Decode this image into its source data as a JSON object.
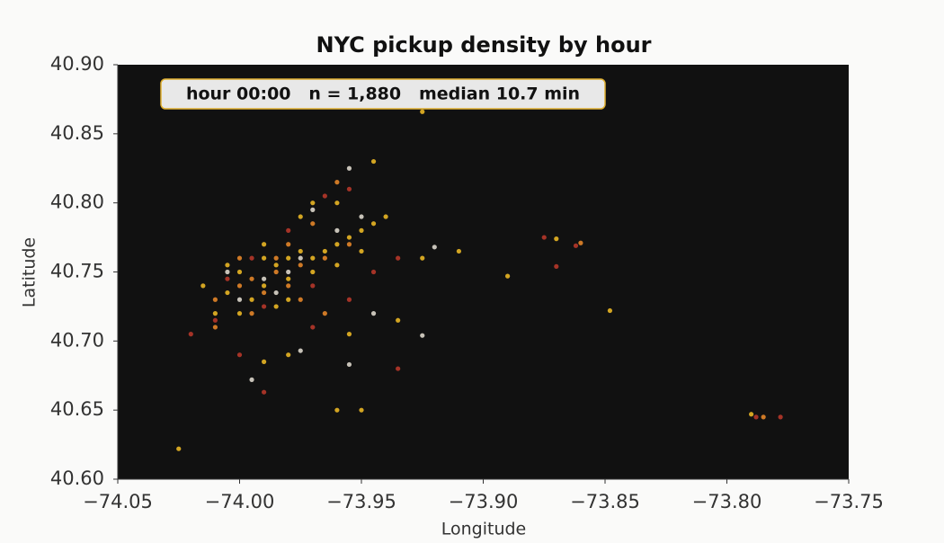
{
  "chart_data": {
    "type": "scatter",
    "title": "NYC pickup density by hour",
    "annotation": "hour 00:00   n = 1,880   median 10.7 min",
    "x_label": "Longitude",
    "y_label": "Latitude",
    "xlim": [
      -74.05,
      -73.75
    ],
    "xticks": [
      {
        "value": -74.05,
        "label": "−74.05"
      },
      {
        "value": -74.0,
        "label": "−74.00"
      },
      {
        "value": -73.95,
        "label": "−73.95"
      },
      {
        "value": -73.9,
        "label": "−73.90"
      },
      {
        "value": -73.85,
        "label": "−73.85"
      },
      {
        "value": -73.8,
        "label": "−73.80"
      },
      {
        "value": -73.75,
        "label": "−73.75"
      }
    ],
    "ylim": [
      40.6,
      40.9
    ],
    "yticks": [
      {
        "value": 40.6,
        "label": "40.60"
      },
      40.65,
      {
        "value": 40.7,
        "label": "40.70"
      },
      40.75,
      {
        "value": 40.8,
        "label": "40.80"
      },
      40.85,
      {
        "value": 40.9,
        "label": "40.90"
      }
    ],
    "background": "#111111",
    "series": [
      {
        "color": "#f6c026",
        "x": [
          -74.0,
          -73.99,
          -73.985,
          -73.98,
          -73.975,
          -73.97,
          -73.99,
          -74.005,
          -73.995,
          -73.98,
          -73.965,
          -73.96,
          -73.955,
          -73.95,
          -73.945,
          -74.01,
          -74.0,
          -73.985,
          -73.975,
          -73.97,
          -73.96,
          -73.95,
          -73.99,
          -74.005,
          -74.015,
          -73.98,
          -73.97,
          -73.96,
          -73.94,
          -73.945,
          -73.955,
          -73.935,
          -73.925,
          -73.91,
          -73.89,
          -73.87,
          -73.848,
          -73.79,
          -73.99,
          -73.98,
          -74.025,
          -73.925,
          -73.96,
          -73.95
        ],
        "values": [
          40.75,
          40.76,
          40.755,
          40.76,
          40.765,
          40.76,
          40.74,
          40.735,
          40.73,
          40.745,
          40.765,
          40.77,
          40.775,
          40.78,
          40.785,
          40.72,
          40.72,
          40.725,
          40.79,
          40.8,
          40.8,
          40.765,
          40.77,
          40.755,
          40.74,
          40.73,
          40.75,
          40.755,
          40.79,
          40.83,
          40.705,
          40.715,
          40.76,
          40.765,
          40.747,
          40.774,
          40.722,
          40.647,
          40.685,
          40.69,
          40.622,
          40.866,
          40.65,
          40.65
        ]
      },
      {
        "color": "#f08c2a",
        "x": [
          -73.995,
          -73.985,
          -73.975,
          -73.99,
          -74.0,
          -73.965,
          -73.98,
          -74.01,
          -73.995,
          -73.97,
          -73.955,
          -73.985,
          -74.01,
          -73.96,
          -73.965,
          -73.86,
          -73.785,
          -73.98,
          -74.0,
          -73.975
        ],
        "values": [
          40.745,
          40.75,
          40.755,
          40.735,
          40.74,
          40.76,
          40.77,
          40.73,
          40.72,
          40.785,
          40.77,
          40.76,
          40.71,
          40.815,
          40.72,
          40.771,
          40.645,
          40.74,
          40.76,
          40.73
        ]
      },
      {
        "color": "#c0392b",
        "x": [
          -74.02,
          -74.01,
          -73.995,
          -73.98,
          -73.965,
          -73.955,
          -73.945,
          -73.935,
          -73.955,
          -73.935,
          -73.99,
          -74.0,
          -73.87,
          -73.862,
          -73.875,
          -73.778,
          -73.788,
          -73.97,
          -74.005,
          -73.99,
          -73.97
        ],
        "values": [
          40.705,
          40.715,
          40.76,
          40.78,
          40.805,
          40.81,
          40.75,
          40.76,
          40.73,
          40.68,
          40.663,
          40.69,
          40.754,
          40.769,
          40.775,
          40.645,
          40.645,
          40.71,
          40.745,
          40.725,
          40.74
        ]
      },
      {
        "color": "#e8e2d6",
        "x": [
          -73.99,
          -74.0,
          -73.975,
          -73.96,
          -73.95,
          -73.955,
          -73.995,
          -73.975,
          -73.925,
          -73.955,
          -73.97,
          -73.98,
          -74.005,
          -73.985,
          -73.945,
          -73.92
        ],
        "values": [
          40.745,
          40.73,
          40.76,
          40.78,
          40.79,
          40.825,
          40.672,
          40.693,
          40.704,
          40.683,
          40.795,
          40.75,
          40.75,
          40.735,
          40.72,
          40.768
        ]
      }
    ]
  }
}
